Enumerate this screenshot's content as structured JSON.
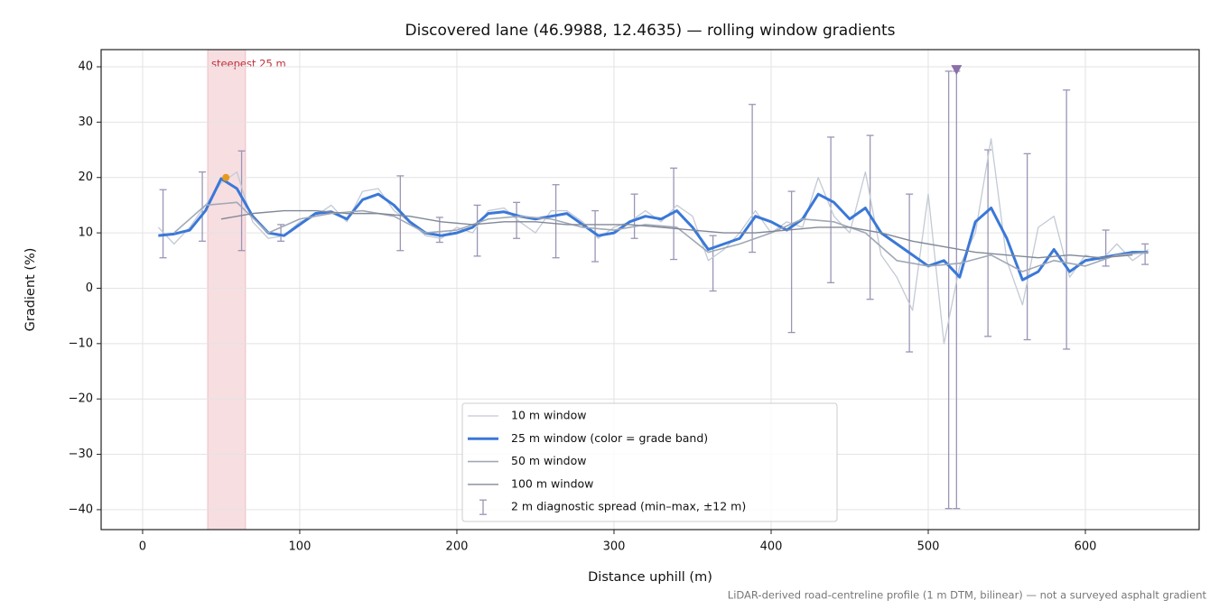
{
  "chart_data": {
    "type": "line",
    "title": "Discovered lane (46.9988, 12.4635) — rolling window gradients",
    "x_label": "Distance uphill (m)",
    "y_label": "Gradient (%)",
    "footnote": "LiDAR-derived road-centreline profile (1 m DTM, bilinear) — not a surveyed asphalt gradient",
    "xlim": [
      -26.4,
      672.4
    ],
    "ylim": [
      -43.6,
      43.1
    ],
    "xticks": [
      0,
      100,
      200,
      300,
      400,
      500,
      600
    ],
    "yticks": [
      {
        "value": -40,
        "label": "−40"
      },
      {
        "value": -30,
        "label": "−30"
      },
      {
        "value": -20,
        "label": "−20"
      },
      {
        "value": -10,
        "label": "−10"
      },
      0,
      10,
      20,
      30,
      40
    ],
    "grid": true,
    "legend": "lower center",
    "highlight": {
      "label": "steepest 25 m",
      "x0": 41.4,
      "x1": 65.5,
      "color": "#e8a0a8",
      "peak_x": 53,
      "peak_y": 20,
      "peak_color": "#e69a1c"
    },
    "marker": {
      "x": 518,
      "y": 39.5,
      "color": "#8a6fa8"
    },
    "series": [
      {
        "name": "10 m window",
        "color": "#c3cad4",
        "width": 1.3,
        "x": [
          10,
          20,
          30,
          40,
          50,
          60,
          70,
          80,
          90,
          100,
          110,
          120,
          130,
          140,
          150,
          160,
          170,
          180,
          190,
          200,
          210,
          220,
          230,
          240,
          250,
          260,
          270,
          280,
          290,
          300,
          310,
          320,
          330,
          340,
          350,
          360,
          370,
          380,
          390,
          400,
          410,
          420,
          430,
          440,
          450,
          460,
          470,
          480,
          490,
          500,
          510,
          520,
          530,
          540,
          550,
          560,
          570,
          580,
          590,
          600,
          610,
          620,
          630,
          640
        ],
        "values": [
          11,
          8,
          11,
          15,
          19,
          21,
          12,
          9,
          9.5,
          12,
          13,
          15,
          12,
          17.5,
          18,
          14,
          12,
          9.5,
          9,
          11,
          10,
          14,
          14.5,
          12,
          10,
          14,
          14,
          12,
          9,
          11,
          12,
          14,
          12,
          15,
          13,
          5,
          7,
          10,
          14,
          10,
          12,
          11,
          20,
          13,
          10,
          21,
          6,
          2,
          -4,
          17,
          -10,
          4,
          10,
          27,
          5,
          -3,
          11,
          13,
          2,
          6,
          5,
          8,
          5,
          7
        ]
      },
      {
        "name": "25 m window (color = grade band)",
        "color": "#3a78d8",
        "width": 3,
        "x": [
          10,
          20,
          30,
          40,
          50,
          60,
          70,
          80,
          90,
          100,
          110,
          120,
          130,
          140,
          150,
          160,
          170,
          180,
          190,
          200,
          210,
          220,
          230,
          240,
          250,
          260,
          270,
          280,
          290,
          300,
          310,
          320,
          330,
          340,
          350,
          360,
          370,
          380,
          390,
          400,
          410,
          420,
          430,
          440,
          450,
          460,
          470,
          480,
          490,
          500,
          510,
          520,
          530,
          540,
          550,
          560,
          570,
          580,
          590,
          600,
          610,
          620,
          630,
          640
        ],
        "values": [
          9.5,
          9.8,
          10.5,
          14,
          19.8,
          18,
          13,
          10,
          9.5,
          11.5,
          13.5,
          13.8,
          12.5,
          16,
          17,
          15,
          12,
          10,
          9.5,
          10,
          11,
          13.5,
          13.8,
          13,
          12.5,
          13,
          13.5,
          11.5,
          9.5,
          10,
          12,
          13,
          12.5,
          14,
          11,
          7,
          8,
          9,
          13,
          12,
          10.5,
          12.5,
          17,
          15.5,
          12.5,
          14.5,
          10,
          8,
          6,
          4,
          5,
          2,
          12,
          14.5,
          9,
          1.5,
          3,
          7,
          3,
          5,
          5.5,
          6,
          6.5,
          6.5
        ]
      },
      {
        "name": "50 m window",
        "color": "#a0a8b6",
        "width": 1.6,
        "x": [
          20,
          40,
          60,
          80,
          100,
          120,
          140,
          160,
          180,
          200,
          220,
          240,
          260,
          280,
          300,
          320,
          340,
          360,
          380,
          400,
          420,
          440,
          460,
          480,
          500,
          520,
          540,
          560,
          580,
          600,
          620,
          640
        ],
        "values": [
          10,
          15,
          15.5,
          10,
          12.5,
          13.5,
          14,
          13,
          10,
          10.5,
          12.5,
          13,
          12.5,
          11,
          10.5,
          11.5,
          11,
          6.5,
          8,
          10,
          12.5,
          12,
          10,
          5,
          4,
          4.5,
          6,
          3,
          5,
          4,
          6,
          6.5
        ]
      },
      {
        "name": "100 m window",
        "color": "#808898",
        "width": 1.4,
        "x": [
          50,
          70,
          90,
          110,
          130,
          150,
          170,
          190,
          210,
          230,
          250,
          270,
          290,
          310,
          330,
          350,
          370,
          390,
          410,
          430,
          450,
          470,
          490,
          510,
          530,
          550,
          570,
          590,
          610,
          630
        ],
        "values": [
          12.5,
          13.5,
          14,
          14,
          13.5,
          13.5,
          13,
          12,
          11.5,
          12,
          12,
          11.5,
          11.5,
          11.5,
          11,
          10.5,
          10,
          10,
          10.5,
          11,
          11,
          10,
          8.5,
          7.5,
          6.5,
          6,
          5.5,
          6,
          5.5,
          6
        ]
      }
    ],
    "errorbars": {
      "name": "2 m diagnostic spread (min–max, ±12 m)",
      "color": "#9a95b5",
      "x": [
        13,
        38,
        63,
        88,
        164,
        189,
        213,
        238,
        263,
        288,
        313,
        338,
        363,
        388,
        413,
        438,
        463,
        488,
        513,
        518,
        538,
        563,
        588,
        613,
        638
      ],
      "min": [
        5.5,
        8.5,
        6.8,
        8.5,
        6.8,
        8.3,
        5.8,
        9,
        5.5,
        4.8,
        9,
        5.2,
        -0.5,
        6.5,
        -8,
        1,
        -2,
        -11.5,
        -39.8,
        -39.8,
        -8.7,
        -9.3,
        -11,
        4,
        4.3
      ],
      "max": [
        17.8,
        21,
        24.8,
        11.5,
        20.3,
        12.8,
        15,
        15.5,
        18.7,
        14,
        17,
        21.7,
        9.5,
        33.2,
        17.5,
        27.3,
        27.6,
        17,
        39.2,
        39.2,
        25,
        24.3,
        35.8,
        10.5,
        8
      ]
    }
  }
}
